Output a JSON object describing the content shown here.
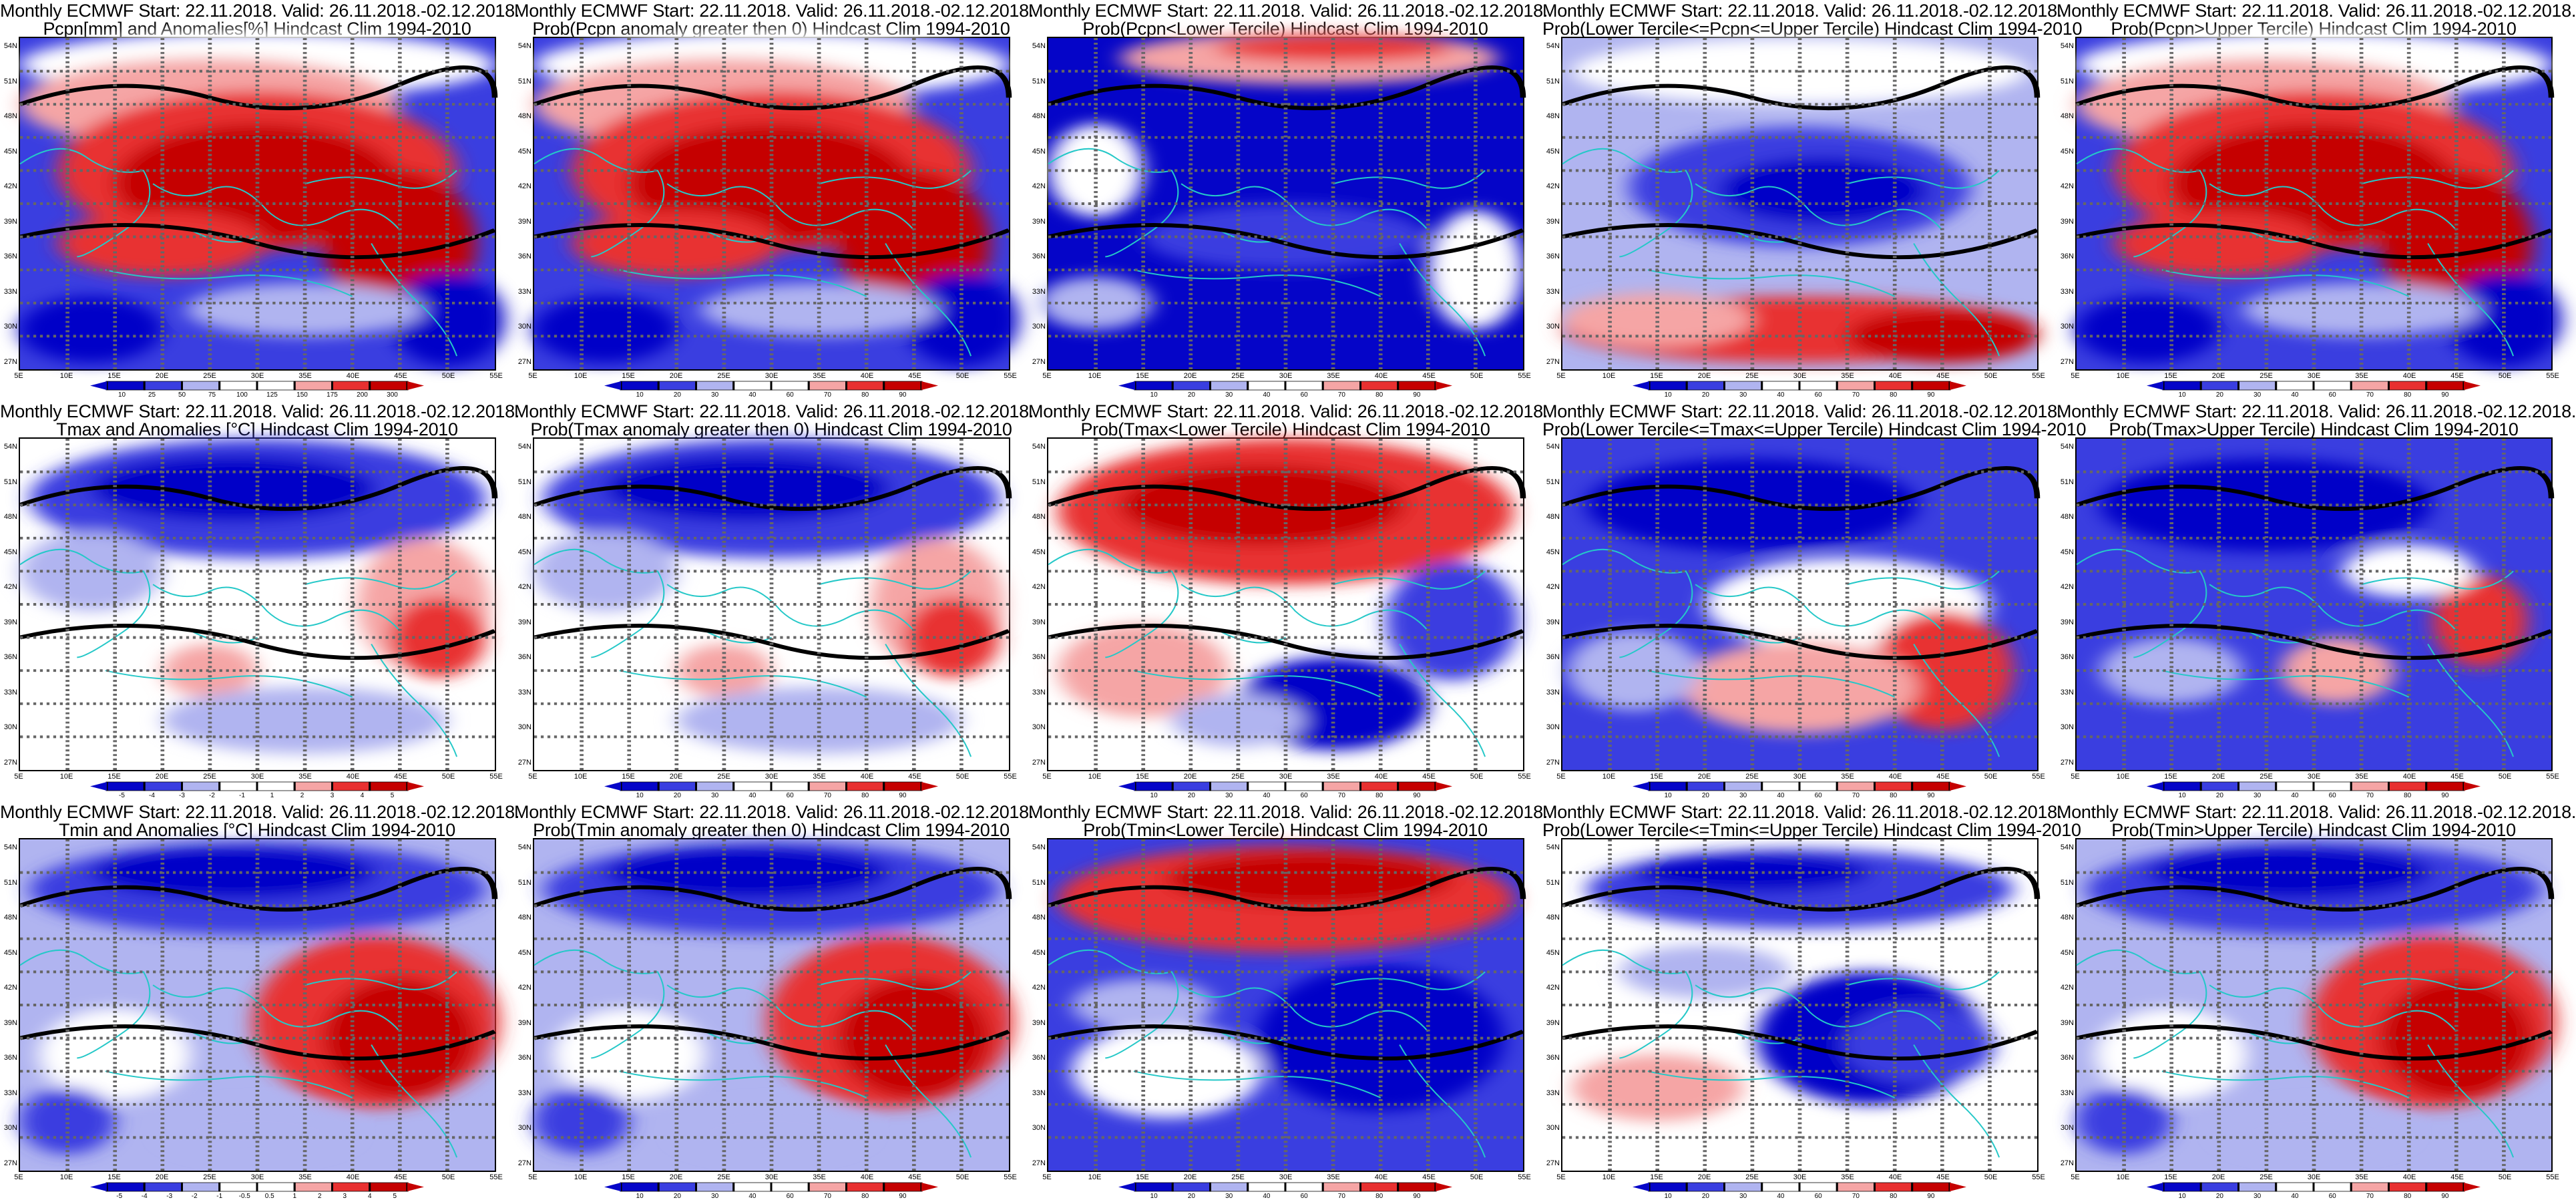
{
  "title_line1": "Monthly ECMWF Start: 22.11.2018. Valid: 26.11.2018.-02.12.2018.",
  "lat_labels": [
    "54N",
    "51N",
    "48N",
    "45N",
    "42N",
    "39N",
    "36N",
    "33N",
    "30N",
    "27N"
  ],
  "lon_labels": [
    "5E",
    "10E",
    "15E",
    "20E",
    "25E",
    "30E",
    "35E",
    "40E",
    "45E",
    "50E",
    "55E"
  ],
  "palette": {
    "red_dark": "#c50000",
    "red": "#e83030",
    "red_light": "#f5a5a5",
    "white": "#ffffff",
    "blue_light": "#b0b4f0",
    "blue": "#3a3ee0",
    "blue_dark": "#0505c8",
    "coast": "#25c8c8",
    "contour": "#000000",
    "brown_dark": "#6b0000"
  },
  "panels": [
    {
      "line2": "Pcpn[mm] and Anomalies[%] Hindcast Clim 1994-2010",
      "pattern": "precip",
      "ticks": [
        "10",
        "25",
        "50",
        "75",
        "100",
        "125",
        "150",
        "175",
        "200",
        "300"
      ]
    },
    {
      "line2": "Prob(Pcpn anomaly greater then 0) Hindcast Clim 1994-2010",
      "pattern": "precip",
      "ticks": [
        "10",
        "20",
        "30",
        "40",
        "60",
        "70",
        "80",
        "90"
      ]
    },
    {
      "line2": "Prob(Pcpn<Lower Tercile) Hindcast Clim 1994-2010",
      "pattern": "precip_lower",
      "ticks": [
        "10",
        "20",
        "30",
        "40",
        "60",
        "70",
        "80",
        "90"
      ]
    },
    {
      "line2": "Prob(Lower Tercile<=Pcpn<=Upper Tercile) Hindcast Clim 1994-2010",
      "pattern": "precip_mid",
      "ticks": [
        "10",
        "20",
        "30",
        "40",
        "60",
        "70",
        "80",
        "90"
      ]
    },
    {
      "line2": "Prob(Pcpn>Upper Tercile) Hindcast Clim 1994-2010",
      "pattern": "precip",
      "ticks": [
        "10",
        "20",
        "30",
        "40",
        "60",
        "70",
        "80",
        "90"
      ]
    },
    {
      "line2": "Tmax and Anomalies [°C] Hindcast Clim 1994-2010",
      "pattern": "tmax_anom",
      "ticks": [
        "-5",
        "-4",
        "-3",
        "-2",
        "-1",
        "1",
        "2",
        "3",
        "4",
        "5"
      ]
    },
    {
      "line2": "Prob(Tmax anomaly greater then 0) Hindcast Clim 1994-2010",
      "pattern": "tmax_anom",
      "ticks": [
        "10",
        "20",
        "30",
        "40",
        "60",
        "70",
        "80",
        "90"
      ]
    },
    {
      "line2": "Prob(Tmax<Lower Tercile) Hindcast Clim 1994-2010",
      "pattern": "tmax_lower",
      "ticks": [
        "10",
        "20",
        "30",
        "40",
        "60",
        "70",
        "80",
        "90"
      ]
    },
    {
      "line2": "Prob(Lower Tercile<=Tmax<=Upper Tercile) Hindcast Clim 1994-2010",
      "pattern": "tmax_mid",
      "ticks": [
        "10",
        "20",
        "30",
        "40",
        "60",
        "70",
        "80",
        "90"
      ]
    },
    {
      "line2": "Prob(Tmax>Upper Tercile) Hindcast Clim 1994-2010",
      "pattern": "tmax_upper",
      "ticks": [
        "10",
        "20",
        "30",
        "40",
        "60",
        "70",
        "80",
        "90"
      ]
    },
    {
      "line2": "Tmin and Anomalies [°C] Hindcast Clim 1994-2010",
      "pattern": "tmin_anom",
      "ticks": [
        "-5",
        "-4",
        "-3",
        "-2",
        "-1",
        "-0.5",
        "0.5",
        "1",
        "2",
        "3",
        "4",
        "5"
      ]
    },
    {
      "line2": "Prob(Tmin anomaly greater then 0) Hindcast Clim 1994-2010",
      "pattern": "tmin_anom",
      "ticks": [
        "10",
        "20",
        "30",
        "40",
        "60",
        "70",
        "80",
        "90"
      ]
    },
    {
      "line2": "Prob(Tmin<Lower Tercile) Hindcast Clim 1994-2010",
      "pattern": "tmin_lower",
      "ticks": [
        "10",
        "20",
        "30",
        "40",
        "60",
        "70",
        "80",
        "90"
      ]
    },
    {
      "line2": "Prob(Lower Tercile<=Tmin<=Upper Tercile) Hindcast Clim 1994-2010",
      "pattern": "tmin_mid",
      "ticks": [
        "10",
        "20",
        "30",
        "40",
        "60",
        "70",
        "80",
        "90"
      ]
    },
    {
      "line2": "Prob(Tmin>Upper Tercile) Hindcast Clim 1994-2010",
      "pattern": "tmin_anom",
      "ticks": [
        "10",
        "20",
        "30",
        "40",
        "60",
        "70",
        "80",
        "90"
      ]
    }
  ]
}
